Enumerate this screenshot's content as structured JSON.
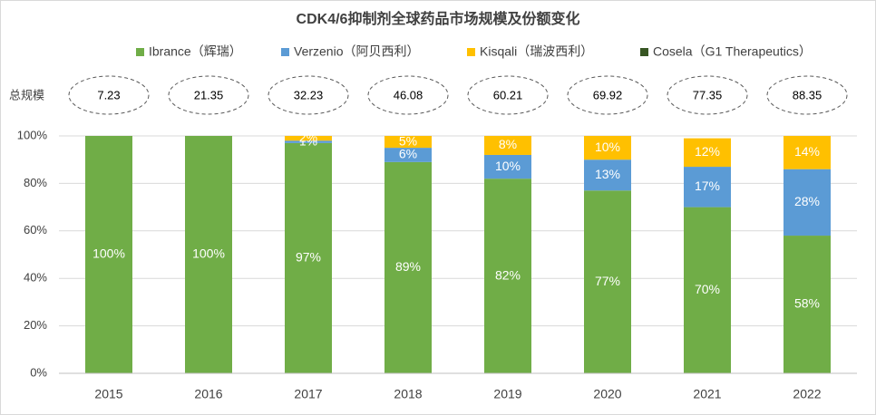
{
  "chart_data": {
    "type": "stacked_bar",
    "title": "CDK4/6抑制剂全球药品市场规模及份额变化",
    "categories": [
      "2015",
      "2016",
      "2017",
      "2018",
      "2019",
      "2020",
      "2021",
      "2022"
    ],
    "series": [
      {
        "name": "Ibrance（辉瑞）",
        "color": "#70ad47",
        "values": [
          100,
          100,
          97,
          89,
          82,
          77,
          70,
          58
        ],
        "value_labels": [
          "100%",
          "100%",
          "97%",
          "89%",
          "82%",
          "77%",
          "70%",
          "58%"
        ]
      },
      {
        "name": "Verzenio（阿贝西利）",
        "color": "#5b9bd5",
        "values": [
          null,
          null,
          1,
          6,
          10,
          13,
          17,
          28
        ],
        "value_labels": [
          null,
          null,
          "1%",
          "6%",
          "10%",
          "13%",
          "17%",
          "28%"
        ]
      },
      {
        "name": "Kisqali（瑞波西利）",
        "color": "#ffc000",
        "values": [
          null,
          null,
          2,
          5,
          8,
          10,
          12,
          14
        ],
        "value_labels": [
          null,
          null,
          "2%",
          "5%",
          "8%",
          "10%",
          "12%",
          "14%"
        ]
      },
      {
        "name": "Cosela（G1 Therapeutics）",
        "color": "#375623",
        "values": [
          null,
          null,
          null,
          null,
          null,
          null,
          null,
          null
        ],
        "value_labels": [
          null,
          null,
          null,
          null,
          null,
          null,
          null,
          null
        ]
      }
    ],
    "totals": {
      "label": "总规模",
      "values": [
        7.23,
        21.35,
        32.23,
        46.08,
        60.21,
        69.92,
        77.35,
        88.35
      ]
    },
    "ylim": [
      0,
      100
    ],
    "yticks": [
      {
        "value": 0,
        "label": "0%"
      },
      {
        "value": 20,
        "label": "20%"
      },
      {
        "value": 40,
        "label": "40%"
      },
      {
        "value": 60,
        "label": "60%"
      },
      {
        "value": 80,
        "label": "80%"
      },
      {
        "value": 100,
        "label": "100%"
      }
    ],
    "grid": true
  }
}
